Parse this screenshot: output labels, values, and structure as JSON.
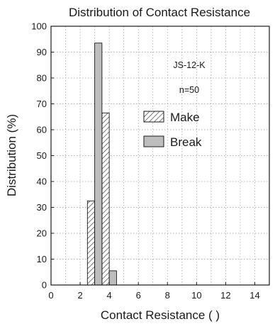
{
  "chart_data": {
    "type": "bar",
    "title": "Distribution of Contact Resistance",
    "xlabel": "Contact Resistance ( )",
    "ylabel": "Distribution (%)",
    "xlim": [
      0,
      15
    ],
    "ylim": [
      0,
      100
    ],
    "x_ticks": [
      0,
      2,
      4,
      6,
      8,
      10,
      12,
      14
    ],
    "y_ticks": [
      0,
      10,
      20,
      30,
      40,
      50,
      60,
      70,
      80,
      90,
      100
    ],
    "grid": "dotted",
    "annotations": [
      "JS-12-K",
      "n=50"
    ],
    "legend_position": "upper-right",
    "series": [
      {
        "name": "Make",
        "pattern": "hatched",
        "color": "#ffffff",
        "bars": [
          {
            "x_start": 2.5,
            "x_end": 3.0,
            "value": 32.5
          },
          {
            "x_start": 3.5,
            "x_end": 4.0,
            "value": 66.5
          }
        ]
      },
      {
        "name": "Break",
        "pattern": "solid",
        "color": "#bdbdbd",
        "bars": [
          {
            "x_start": 3.0,
            "x_end": 3.5,
            "value": 93.5
          },
          {
            "x_start": 4.0,
            "x_end": 4.5,
            "value": 5.5
          }
        ]
      }
    ]
  }
}
